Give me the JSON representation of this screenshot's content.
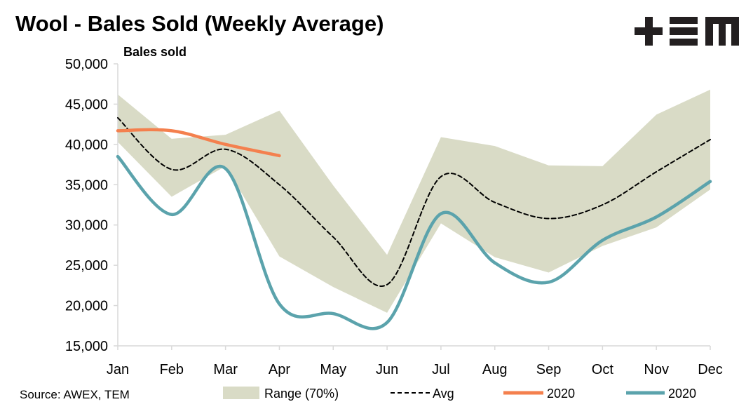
{
  "title": "Wool - Bales Sold (Weekly Average)",
  "source": "Source: AWEX, TEM",
  "logo_text": "TEM",
  "colors": {
    "range": "#d9dbc6",
    "avg": "#000000",
    "orange": "#f4804e",
    "teal": "#5ba3ac"
  },
  "chart_data": {
    "type": "line",
    "title": "Wool - Bales Sold (Weekly Average)",
    "ylabel": "Bales sold",
    "xlabel": "",
    "categories": [
      "Jan",
      "Feb",
      "Mar",
      "Apr",
      "May",
      "Jun",
      "Jul",
      "Aug",
      "Sep",
      "Oct",
      "Nov",
      "Dec"
    ],
    "ylim": [
      15000,
      50000
    ],
    "yticks": [
      "15,000",
      "20,000",
      "25,000",
      "30,000",
      "35,000",
      "40,000",
      "45,000",
      "50,000"
    ],
    "ytick_values": [
      15000,
      20000,
      25000,
      30000,
      35000,
      40000,
      45000,
      50000
    ],
    "grid": false,
    "legend_placement": "bottom",
    "range": {
      "name": "Range (70%)",
      "upper": [
        46200,
        40700,
        41200,
        44200,
        34900,
        26300,
        40900,
        39800,
        37400,
        37300,
        43700,
        46800
      ],
      "lower": [
        40300,
        33500,
        37300,
        26100,
        22300,
        19100,
        30200,
        26000,
        24100,
        27400,
        29700,
        34400
      ]
    },
    "series": [
      {
        "name": "Avg",
        "style": "dashed",
        "values": [
          43300,
          36900,
          39400,
          35000,
          28500,
          22600,
          36000,
          32800,
          30800,
          32500,
          36600,
          40600
        ]
      },
      {
        "name": "2020",
        "color": "orange",
        "values": [
          41700,
          41700,
          40000,
          38600,
          null,
          null,
          null,
          null,
          null,
          null,
          null,
          null
        ]
      },
      {
        "name": "2020",
        "color": "teal",
        "values": [
          38500,
          31300,
          37000,
          20200,
          19000,
          17900,
          31400,
          25300,
          22900,
          28100,
          31000,
          35400
        ]
      }
    ]
  }
}
